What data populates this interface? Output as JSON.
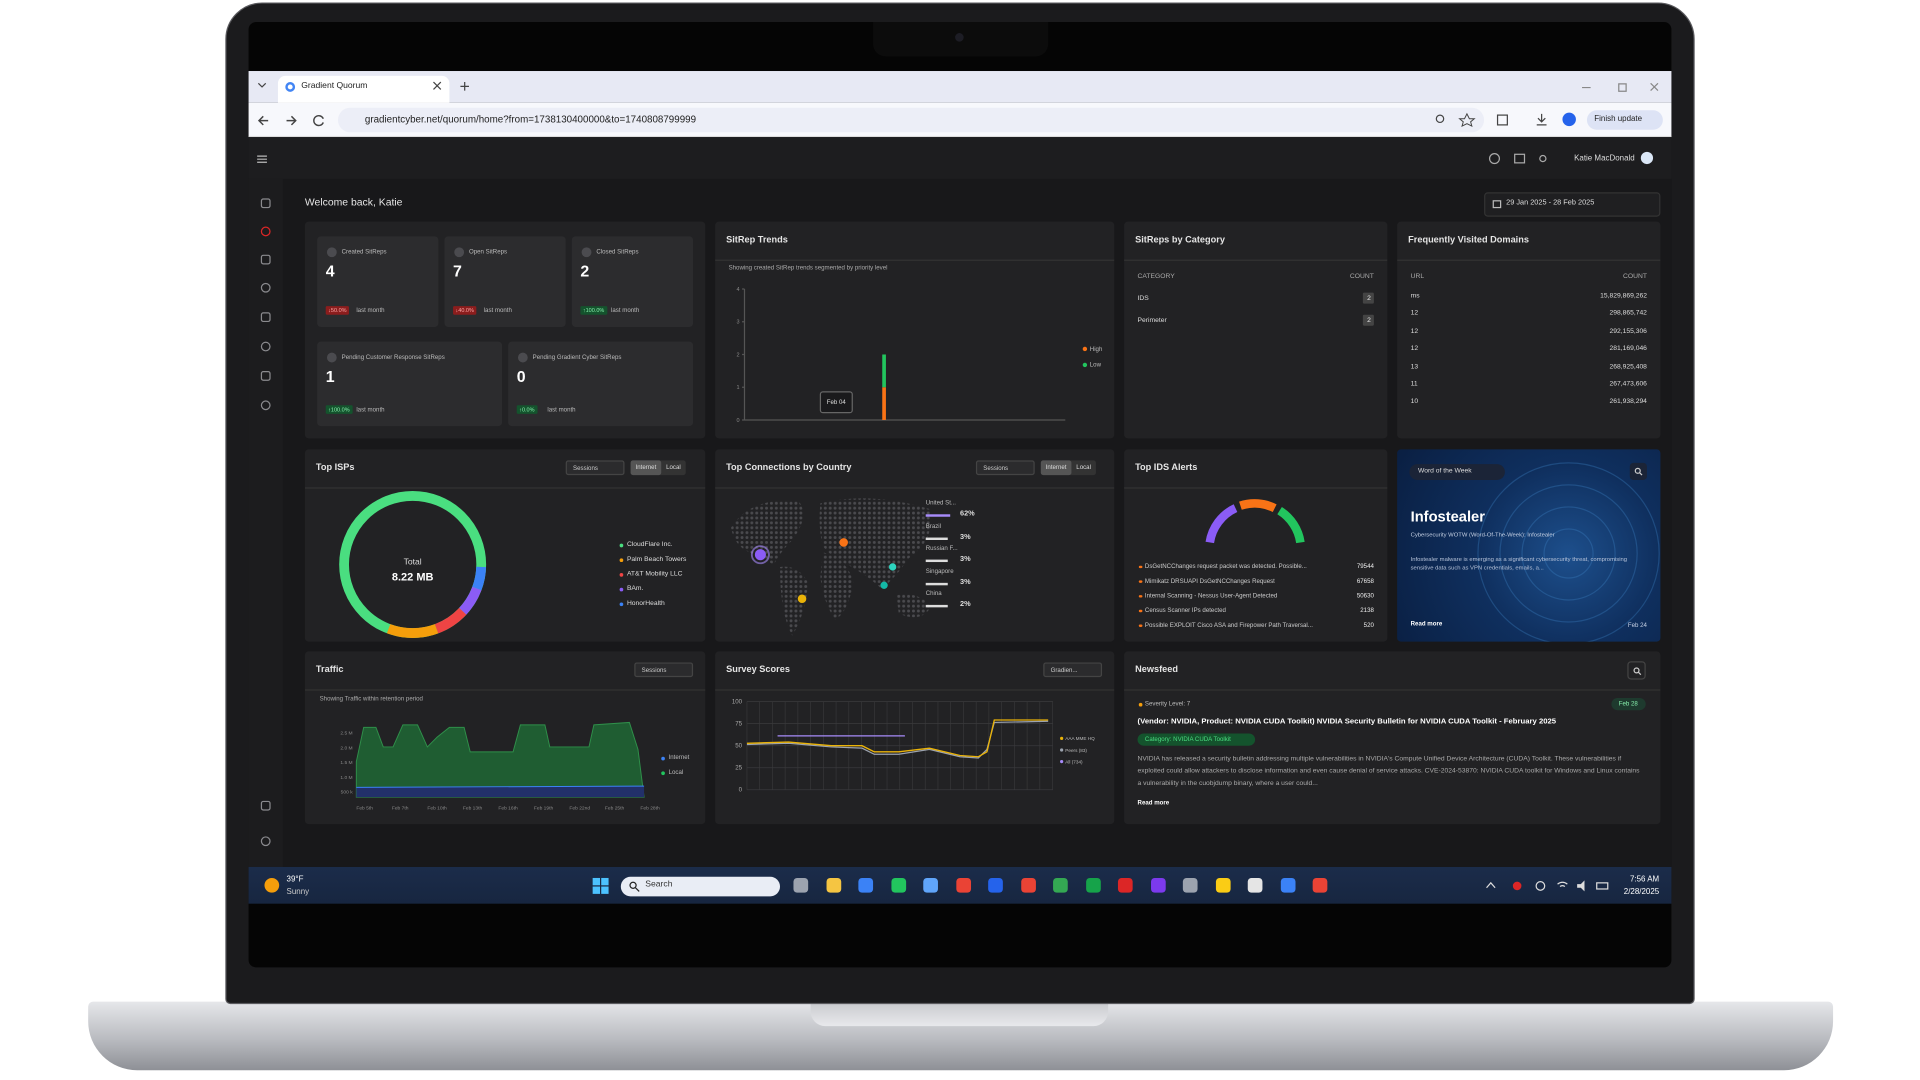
{
  "browser": {
    "tab_title": "Gradient Quorum",
    "url": "gradientcyber.net/quorum/home?from=1738130400000&to=1740808799999",
    "update_button": "Finish update"
  },
  "app": {
    "user": "Katie MacDonald",
    "welcome": "Welcome back, Katie",
    "date_range": "29 Jan 2025 - 28 Feb 2025"
  },
  "stats": [
    {
      "label": "Created SitReps",
      "value": 4,
      "change": "↓50.0%",
      "period": "last month",
      "color": "#8b1d1d"
    },
    {
      "label": "Open SitReps",
      "value": 7,
      "change": "↓40.0%",
      "period": "last month",
      "color": "#8b1d1d"
    },
    {
      "label": "Closed SitReps",
      "value": 2,
      "change": "↑100.0%",
      "period": "last month",
      "color": "#14532d"
    },
    {
      "label": "Pending Customer Response SitReps",
      "value": 1,
      "change": "↑100.0%",
      "period": "last month",
      "color": "#14532d"
    },
    {
      "label": "Pending Gradient Cyber SitReps",
      "value": 0,
      "change": "↑0.0%",
      "period": "last month",
      "color": "#14532d"
    }
  ],
  "sitrep_trends": {
    "title": "SitRep Trends",
    "subtitle": "Showing created SitRep trends segmented by priority level",
    "yticks": [
      0,
      1,
      2,
      3,
      4
    ],
    "tooltip": "Feb 04",
    "series": [
      {
        "name": "High",
        "color": "#f97316",
        "value": 1
      },
      {
        "name": "Low",
        "color": "#22c55e",
        "value": 1
      }
    ]
  },
  "categories": {
    "title": "SitReps by Category",
    "headers": [
      "CATEGORY",
      "COUNT"
    ],
    "rows": [
      [
        "IDS",
        2
      ],
      [
        "Perimeter",
        2
      ]
    ]
  },
  "domains": {
    "title": "Frequently Visited Domains",
    "headers": [
      "URL",
      "COUNT"
    ],
    "rows": [
      [
        "ms",
        "15,829,869,262"
      ],
      [
        "12",
        "298,865,742"
      ],
      [
        "12",
        "292,155,306"
      ],
      [
        "12",
        "281,169,046"
      ],
      [
        "13",
        "268,925,408"
      ],
      [
        "11",
        "267,473,606"
      ],
      [
        "10",
        "261,938,294"
      ]
    ]
  },
  "isps": {
    "title": "Top ISPs",
    "dropdown": "Sessions",
    "toggles": [
      "Internet",
      "Local"
    ],
    "total_label": "Total",
    "total": "8.22 MB",
    "legend": [
      {
        "name": "CloudFlare Inc.",
        "color": "#4ade80"
      },
      {
        "name": "Palm Beach Towers",
        "color": "#f59e0b"
      },
      {
        "name": "AT&T Mobility LLC",
        "color": "#ef4444"
      },
      {
        "name": "BAm.",
        "color": "#8b5cf6"
      },
      {
        "name": "HonorHealth",
        "color": "#3b82f6"
      }
    ]
  },
  "countries": {
    "title": "Top Connections by Country",
    "dropdown": "Sessions",
    "toggles": [
      "Internet",
      "Local"
    ],
    "rows": [
      [
        "United St...",
        "62%"
      ],
      [
        "Brazil",
        "3%"
      ],
      [
        "Russian F...",
        "3%"
      ],
      [
        "Singapore",
        "3%"
      ],
      [
        "China",
        "2%"
      ]
    ]
  },
  "ids": {
    "title": "Top IDS Alerts",
    "rows": [
      [
        "DsGetNCChanges request packet was detected. Possible...",
        "79544"
      ],
      [
        "Mimikatz DRSUAPI DsGetNCChanges Request",
        "67658"
      ],
      [
        "Internal Scanning - Nessus User-Agent Detected",
        "50630"
      ],
      [
        "Census Scanner IPs detected",
        "2138"
      ],
      [
        "Possible EXPLOIT Cisco ASA and Firepower Path Traversal...",
        "520"
      ]
    ]
  },
  "word": {
    "badge": "Word of the Week",
    "term": "Infostealer",
    "subtitle": "Cybersecurity WOTW (Word-Of-The-Week): Infostealer",
    "text": "Infostealer malware is emerging as a significant cybersecurity threat, compromising sensitive data such as VPN credentials, emails, a...",
    "link": "Read more",
    "date": "Feb 24"
  },
  "traffic": {
    "title": "Traffic",
    "dropdown": "Sessions",
    "subtitle": "Showing Traffic within retention period",
    "yticks": [
      "2.5 M",
      "2.0 M",
      "1.5 M",
      "1.0 M",
      "500 k"
    ],
    "xticks": [
      "Feb 5th",
      "Feb 7th",
      "Feb 10th",
      "Feb 13th",
      "Feb 16th",
      "Feb 19th",
      "Feb 22nd",
      "Feb 25th",
      "Feb 28th"
    ],
    "legend": [
      {
        "name": "Internet",
        "color": "#3b82f6"
      },
      {
        "name": "Local",
        "color": "#22c55e"
      }
    ]
  },
  "survey": {
    "title": "Survey Scores",
    "dropdown": "Gradien...",
    "yticks": [
      0,
      25,
      50,
      75,
      100
    ],
    "legend": [
      {
        "name": "AAA MME HQ",
        "color": "#eab308"
      },
      {
        "name": "Peers (83)",
        "color": "#9ca3af"
      },
      {
        "name": "All (734)",
        "color": "#a78bfa"
      }
    ]
  },
  "newsfeed": {
    "title": "Newsfeed",
    "severity": "Severity Level: 7",
    "date": "Feb 28",
    "headline": "(Vendor: NVIDIA, Product: NVIDIA CUDA Toolkit) NVIDIA Security Bulletin for NVIDIA CUDA Toolkit - February 2025",
    "tag": "Category: NVIDIA CUDA Toolkit",
    "body": "NVIDIA has released a security bulletin addressing multiple vulnerabilities in NVIDIA's Compute Unified Device Architecture (CUDA) Toolkit. These vulnerabilities if exploited could allow attackers to disclose information and even cause denial of service attacks. CVE-2024-53870: NVIDIA CUDA toolkit for Windows and Linux contains a vulnerability in the cuobjdump binary, where a user could...",
    "link": "Read more"
  },
  "taskbar": {
    "temp": "39°F",
    "weather": "Sunny",
    "search": "Search",
    "time": "7:56 AM",
    "date": "2/28/2025"
  }
}
